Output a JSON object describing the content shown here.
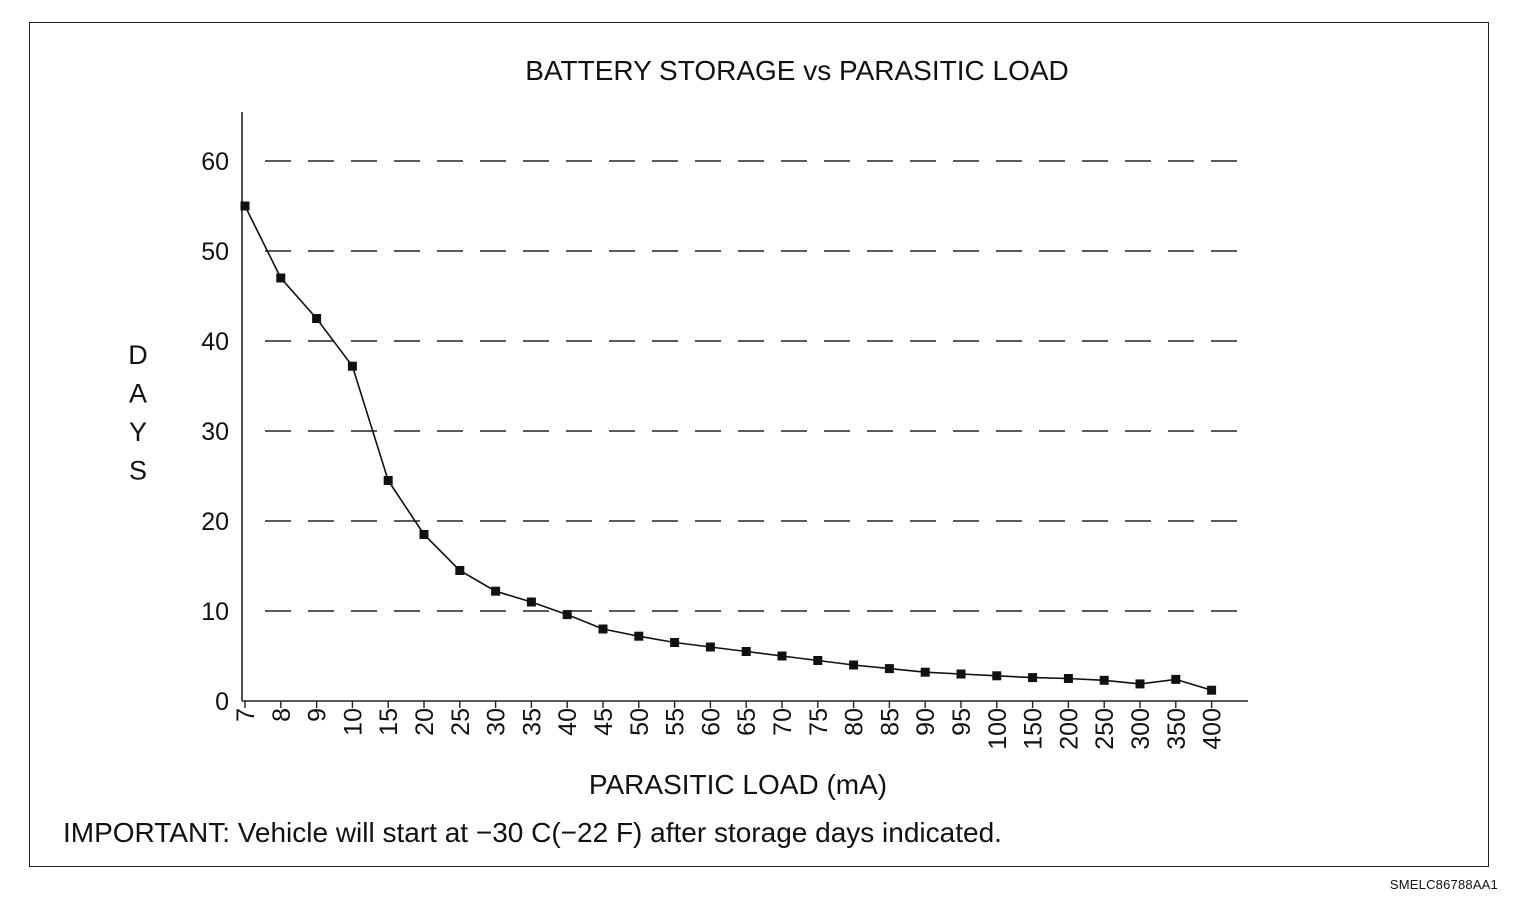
{
  "chart_data": {
    "type": "line",
    "title": "BATTERY STORAGE vs PARASITIC LOAD",
    "xlabel": "PARASITIC LOAD (mA)",
    "ylabel": "DAYS",
    "categories": [
      "7",
      "8",
      "9",
      "10",
      "15",
      "20",
      "25",
      "30",
      "35",
      "40",
      "45",
      "50",
      "55",
      "60",
      "65",
      "70",
      "75",
      "80",
      "85",
      "90",
      "95",
      "100",
      "150",
      "200",
      "250",
      "300",
      "350",
      "400"
    ],
    "series": [
      {
        "values": [
          55,
          47,
          42.5,
          37.2,
          24.5,
          18.5,
          14.5,
          12.2,
          11,
          9.6,
          8,
          7.2,
          6.5,
          6,
          5.5,
          5,
          4.5,
          4,
          3.6,
          3.2,
          3,
          2.8,
          2.6,
          2.5,
          2.3,
          1.9,
          2.4,
          1.2
        ]
      }
    ],
    "ylim": [
      0,
      65
    ],
    "yticks": [
      "0",
      "10",
      "20",
      "30",
      "40",
      "50",
      "60"
    ],
    "grid": "horizontal dashed",
    "marker": "filled square"
  },
  "note": "IMPORTANT: Vehicle will start at −30 C(−22 F) after storage days indicated.",
  "figure_code": "SMELC86788AA1"
}
